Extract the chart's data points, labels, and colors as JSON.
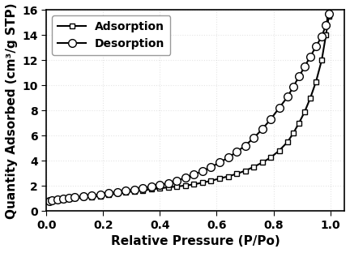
{
  "adsorption_x": [
    0.01,
    0.02,
    0.04,
    0.06,
    0.08,
    0.1,
    0.13,
    0.16,
    0.19,
    0.22,
    0.25,
    0.28,
    0.31,
    0.34,
    0.37,
    0.4,
    0.43,
    0.46,
    0.49,
    0.52,
    0.55,
    0.58,
    0.61,
    0.64,
    0.67,
    0.7,
    0.73,
    0.76,
    0.79,
    0.82,
    0.85,
    0.87,
    0.89,
    0.91,
    0.93,
    0.95,
    0.97,
    0.985,
    0.995
  ],
  "adsorption_y": [
    0.75,
    0.82,
    0.88,
    0.93,
    0.98,
    1.02,
    1.08,
    1.13,
    1.2,
    1.3,
    1.4,
    1.5,
    1.58,
    1.65,
    1.72,
    1.8,
    1.88,
    1.95,
    2.02,
    2.12,
    2.25,
    2.4,
    2.58,
    2.75,
    2.95,
    3.2,
    3.5,
    3.85,
    4.25,
    4.8,
    5.5,
    6.2,
    7.0,
    7.9,
    9.0,
    10.3,
    12.0,
    14.0,
    15.5
  ],
  "desorption_x": [
    0.01,
    0.02,
    0.04,
    0.06,
    0.08,
    0.1,
    0.13,
    0.16,
    0.19,
    0.22,
    0.25,
    0.28,
    0.31,
    0.34,
    0.37,
    0.4,
    0.43,
    0.46,
    0.49,
    0.52,
    0.55,
    0.58,
    0.61,
    0.64,
    0.67,
    0.7,
    0.73,
    0.76,
    0.79,
    0.82,
    0.85,
    0.87,
    0.89,
    0.91,
    0.93,
    0.95,
    0.97,
    0.985,
    0.995
  ],
  "desorption_y": [
    0.75,
    0.85,
    0.92,
    0.98,
    1.03,
    1.08,
    1.15,
    1.22,
    1.3,
    1.4,
    1.5,
    1.6,
    1.7,
    1.8,
    1.92,
    2.05,
    2.22,
    2.42,
    2.65,
    2.9,
    3.18,
    3.5,
    3.85,
    4.25,
    4.7,
    5.2,
    5.8,
    6.5,
    7.3,
    8.2,
    9.1,
    9.9,
    10.7,
    11.5,
    12.3,
    13.1,
    13.9,
    14.8,
    15.7
  ],
  "line_color": "#000000",
  "adsorption_marker": "s",
  "desorption_marker": "o",
  "adsorption_marker_size": 5,
  "desorption_marker_size": 7,
  "marker_facecolor_white": "#ffffff",
  "xlabel": "Relative Pressure (P/Po)",
  "ylabel": "Quantity Adsorbed (cm³/g STP)",
  "xlim": [
    0.0,
    1.05
  ],
  "ylim": [
    0,
    16
  ],
  "yticks": [
    0,
    2,
    4,
    6,
    8,
    10,
    12,
    14,
    16
  ],
  "xticks": [
    0.0,
    0.2,
    0.4,
    0.6,
    0.8,
    1.0
  ],
  "legend_labels": [
    "Adsorption",
    "Desorption"
  ],
  "legend_loc": "upper left",
  "label_fontsize": 11,
  "tick_fontsize": 10,
  "legend_fontsize": 10,
  "background_color": "#ffffff",
  "linewidth": 1.5,
  "grid_color": "#cccccc",
  "grid_alpha": 0.5
}
